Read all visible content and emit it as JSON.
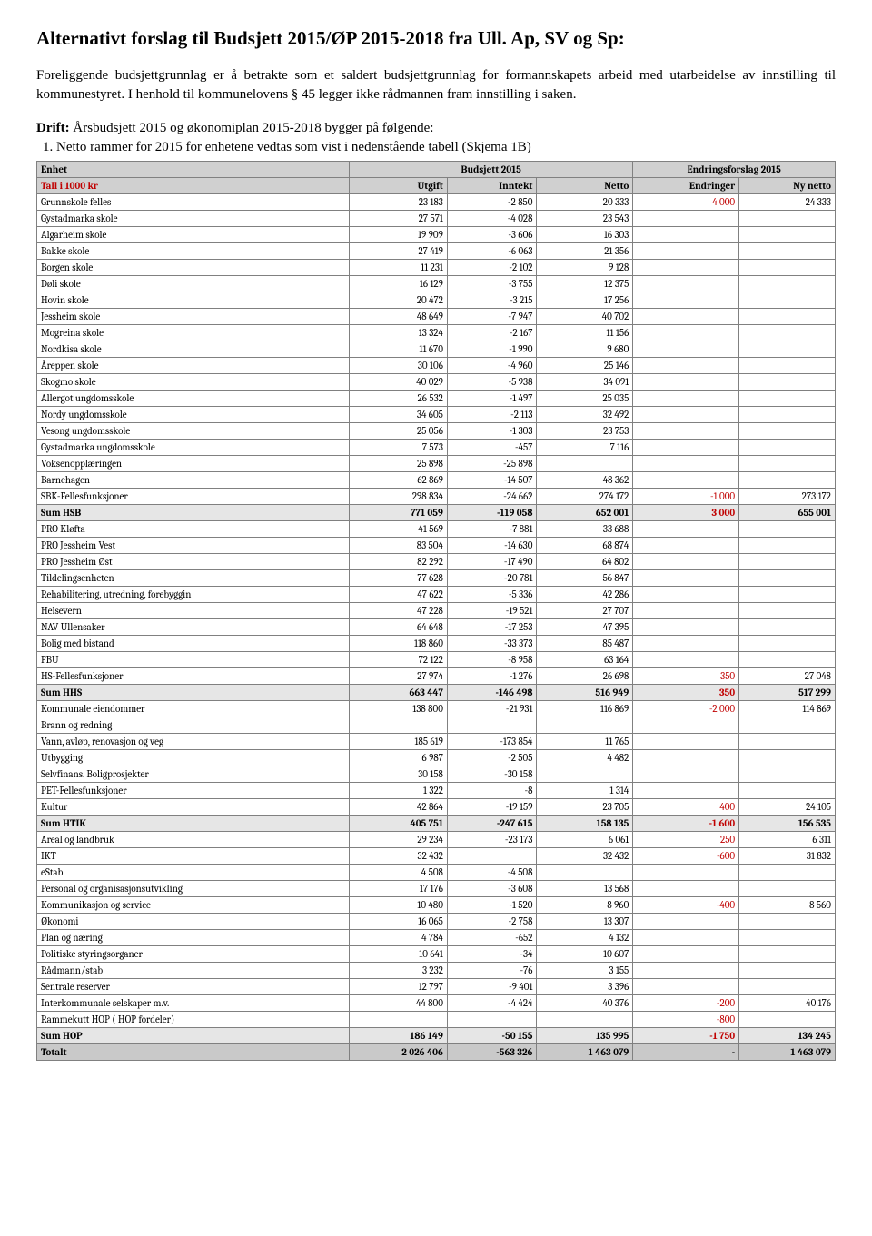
{
  "title": "Alternativt forslag til Budsjett 2015/ØP 2015-2018 fra Ull. Ap, SV og Sp:",
  "intro": "Foreliggende budsjettgrunnlag er å betrakte som et saldert budsjettgrunnlag for formannskapets arbeid med utarbeidelse av innstilling til kommunestyret. I henhold til kommunelovens § 45 legger ikke rådmannen fram innstilling i saken.",
  "drift_label": "Drift:",
  "drift_text": " Årsbudsjett 2015 og økonomiplan 2015-2018 bygger på følgende:",
  "list_item_1": "Netto rammer for 2015 for enhetene vedtas som vist i nedenstående tabell (Skjema 1B)",
  "headers": {
    "enhet": "Enhet",
    "budsjett": "Budsjett 2015",
    "endringsforslag": "Endringsforslag 2015",
    "tall": "Tall i 1000 kr",
    "utgift": "Utgift",
    "inntekt": "Inntekt",
    "netto": "Netto",
    "endringer": "Endringer",
    "ny_netto": "Ny netto"
  },
  "rows": [
    {
      "name": "Grunnskole felles",
      "utgift": "23 183",
      "inntekt": "-2 850",
      "netto": "20 333",
      "endringer": "4 000",
      "nynetto": "24 333",
      "red": true
    },
    {
      "name": "Gystadmarka skole",
      "utgift": "27 571",
      "inntekt": "-4 028",
      "netto": "23 543"
    },
    {
      "name": "Algarheim skole",
      "utgift": "19 909",
      "inntekt": "-3 606",
      "netto": "16 303"
    },
    {
      "name": "Bakke skole",
      "utgift": "27 419",
      "inntekt": "-6 063",
      "netto": "21 356"
    },
    {
      "name": "Borgen skole",
      "utgift": "11 231",
      "inntekt": "-2 102",
      "netto": "9 128"
    },
    {
      "name": "Døli skole",
      "utgift": "16 129",
      "inntekt": "-3 755",
      "netto": "12 375"
    },
    {
      "name": "Hovin skole",
      "utgift": "20 472",
      "inntekt": "-3 215",
      "netto": "17 256"
    },
    {
      "name": "Jessheim skole",
      "utgift": "48 649",
      "inntekt": "-7 947",
      "netto": "40 702"
    },
    {
      "name": "Mogreina skole",
      "utgift": "13 324",
      "inntekt": "-2 167",
      "netto": "11 156"
    },
    {
      "name": "Nordkisa skole",
      "utgift": "11 670",
      "inntekt": "-1 990",
      "netto": "9 680"
    },
    {
      "name": "Åreppen skole",
      "utgift": "30 106",
      "inntekt": "-4 960",
      "netto": "25 146"
    },
    {
      "name": "Skogmo skole",
      "utgift": "40 029",
      "inntekt": "-5 938",
      "netto": "34 091"
    },
    {
      "name": "Allergot ungdomsskole",
      "utgift": "26 532",
      "inntekt": "-1 497",
      "netto": "25 035"
    },
    {
      "name": "Nordy ungdomsskole",
      "utgift": "34 605",
      "inntekt": "-2 113",
      "netto": "32 492"
    },
    {
      "name": "Vesong ungdomsskole",
      "utgift": "25 056",
      "inntekt": "-1 303",
      "netto": "23 753"
    },
    {
      "name": "Gystadmarka ungdomsskole",
      "utgift": "7 573",
      "inntekt": "-457",
      "netto": "7 116"
    },
    {
      "name": "Voksenopplæringen",
      "utgift": "25 898",
      "inntekt": "-25 898"
    },
    {
      "name": "Barnehagen",
      "utgift": "62 869",
      "inntekt": "-14 507",
      "netto": "48 362"
    },
    {
      "name": "SBK-Fellesfunksjoner",
      "utgift": "298 834",
      "inntekt": "-24 662",
      "netto": "274 172",
      "endringer": "-1 000",
      "nynetto": "273 172",
      "red": true
    },
    {
      "name": "Sum HSB",
      "utgift": "771 059",
      "inntekt": "-119 058",
      "netto": "652 001",
      "endringer": "3 000",
      "nynetto": "655 001",
      "sum": true,
      "red": true
    },
    {
      "name": "PRO Kløfta",
      "utgift": "41 569",
      "inntekt": "-7 881",
      "netto": "33 688"
    },
    {
      "name": "PRO Jessheim Vest",
      "utgift": "83 504",
      "inntekt": "-14 630",
      "netto": "68 874"
    },
    {
      "name": "PRO Jessheim Øst",
      "utgift": "82 292",
      "inntekt": "-17 490",
      "netto": "64 802"
    },
    {
      "name": "Tildelingsenheten",
      "utgift": "77 628",
      "inntekt": "-20 781",
      "netto": "56 847"
    },
    {
      "name": "Rehabilitering, utredning, forebyggin",
      "utgift": "47 622",
      "inntekt": "-5 336",
      "netto": "42 286"
    },
    {
      "name": "Helsevern",
      "utgift": "47 228",
      "inntekt": "-19 521",
      "netto": "27 707"
    },
    {
      "name": "NAV Ullensaker",
      "utgift": "64 648",
      "inntekt": "-17 253",
      "netto": "47 395"
    },
    {
      "name": "Bolig med bistand",
      "utgift": "118 860",
      "inntekt": "-33 373",
      "netto": "85 487"
    },
    {
      "name": "FBU",
      "utgift": "72 122",
      "inntekt": "-8 958",
      "netto": "63 164"
    },
    {
      "name": "HS-Fellesfunksjoner",
      "utgift": "27 974",
      "inntekt": "-1 276",
      "netto": "26 698",
      "endringer": "350",
      "nynetto": "27 048",
      "red": true
    },
    {
      "name": "Sum HHS",
      "utgift": "663 447",
      "inntekt": "-146 498",
      "netto": "516 949",
      "endringer": "350",
      "nynetto": "517 299",
      "sum": true,
      "red": true
    },
    {
      "name": "Kommunale eiendommer",
      "utgift": "138 800",
      "inntekt": "-21 931",
      "netto": "116 869",
      "endringer": "-2 000",
      "nynetto": "114 869",
      "red": true
    },
    {
      "name": "Brann og redning"
    },
    {
      "name": "Vann, avløp, renovasjon og veg",
      "utgift": "185 619",
      "inntekt": "-173 854",
      "netto": "11 765"
    },
    {
      "name": "Utbygging",
      "utgift": "6 987",
      "inntekt": "-2 505",
      "netto": "4 482"
    },
    {
      "name": "Selvfinans. Boligprosjekter",
      "utgift": "30 158",
      "inntekt": "-30 158"
    },
    {
      "name": "PET-Fellesfunksjoner",
      "utgift": "1 322",
      "inntekt": "-8",
      "netto": "1 314"
    },
    {
      "name": "Kultur",
      "utgift": "42 864",
      "inntekt": "-19 159",
      "netto": "23 705",
      "endringer": "400",
      "nynetto": "24 105",
      "red": true
    },
    {
      "name": "Sum HTIK",
      "utgift": "405 751",
      "inntekt": "-247 615",
      "netto": "158 135",
      "endringer": "-1 600",
      "nynetto": "156 535",
      "sum": true,
      "red": true
    },
    {
      "name": "Areal og landbruk",
      "utgift": "29 234",
      "inntekt": "-23 173",
      "netto": "6 061",
      "endringer": "250",
      "nynetto": "6 311",
      "red": true
    },
    {
      "name": "IKT",
      "utgift": "32 432",
      "netto": "32 432",
      "endringer": "-600",
      "nynetto": "31 832",
      "red": true
    },
    {
      "name": "eStab",
      "utgift": "4 508",
      "inntekt": "-4 508"
    },
    {
      "name": "Personal og organisasjonsutvikling",
      "utgift": "17 176",
      "inntekt": "-3 608",
      "netto": "13 568"
    },
    {
      "name": "Kommunikasjon og service",
      "utgift": "10 480",
      "inntekt": "-1 520",
      "netto": "8 960",
      "endringer": "-400",
      "nynetto": "8 560",
      "red": true
    },
    {
      "name": "Økonomi",
      "utgift": "16 065",
      "inntekt": "-2 758",
      "netto": "13 307"
    },
    {
      "name": "Plan og næring",
      "utgift": "4 784",
      "inntekt": "-652",
      "netto": "4 132"
    },
    {
      "name": "Politiske styringsorganer",
      "utgift": "10 641",
      "inntekt": "-34",
      "netto": "10 607"
    },
    {
      "name": "Rådmann/stab",
      "utgift": "3 232",
      "inntekt": "-76",
      "netto": "3 155"
    },
    {
      "name": "Sentrale reserver",
      "utgift": "12 797",
      "inntekt": "-9 401",
      "netto": "3 396"
    },
    {
      "name": "Interkommunale selskaper m.v.",
      "utgift": "44 800",
      "inntekt": "-4 424",
      "netto": "40 376",
      "endringer": "-200",
      "nynetto": "40 176",
      "red": true
    },
    {
      "name": "Rammekutt HOP ( HOP fordeler)",
      "endringer": "-800",
      "red": true
    },
    {
      "name": "Sum HOP",
      "utgift": "186 149",
      "inntekt": "-50 155",
      "netto": "135 995",
      "endringer": "-1 750",
      "nynetto": "134 245",
      "sum": true,
      "red": true
    },
    {
      "name": "Totalt",
      "utgift": "2 026 406",
      "inntekt": "-563 326",
      "netto": "1 463 079",
      "endringer": "-",
      "nynetto": "1 463 079",
      "total": true
    }
  ]
}
